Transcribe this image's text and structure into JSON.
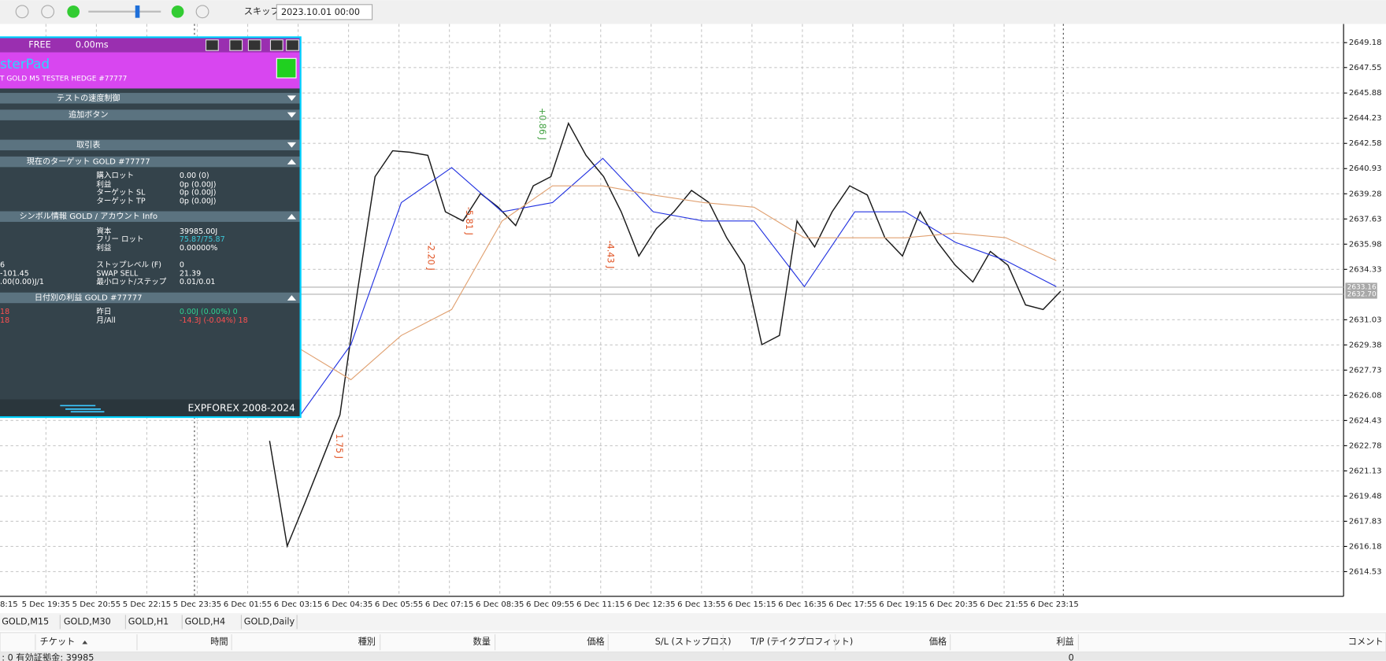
{
  "toolbar": {
    "skip": "スキップ",
    "date": "2023.10.01 00:00"
  },
  "panel": {
    "status": "FREE",
    "ms": "0.00ms",
    "title": "sterPad",
    "subtitle": "T GOLD M5 TESTER HEDGE  #77777",
    "footer": "EXPFOREX 2008-2024",
    "sections": [
      {
        "title": "テストの速度制御",
        "rows": []
      },
      {
        "title": "追加ボタン",
        "rows": []
      },
      {
        "title": "取引表",
        "rows": []
      },
      {
        "title": "現在のターゲット GOLD #77777",
        "rows": [
          {
            "label": "購入ロット",
            "value": "0.00 (0)"
          },
          {
            "label": "利益",
            "value": "0p (0.00J)"
          },
          {
            "label": "ターゲット SL",
            "value": "0p (0.00J)"
          },
          {
            "label": "ターゲット TP",
            "value": "0p (0.00J)"
          }
        ]
      },
      {
        "title": "シンボル情報 GOLD / アカウント Info",
        "rows": [
          {
            "label": "資本",
            "value": "39985.00J"
          },
          {
            "label": "フリー ロット",
            "value": "75.87/75.87",
            "color": "#3cc8d8"
          },
          {
            "label": "利益",
            "value": "0.00000%"
          },
          {
            "left": "6",
            "label": "ストップレベル (F)",
            "value": "0"
          },
          {
            "left": "-101.45",
            "label": "SWAP SELL",
            "value": "21.39"
          },
          {
            "left": ".00(0.00)J/1",
            "label": "最小ロット/ステップ",
            "value": "0.01/0.01"
          }
        ]
      },
      {
        "title": "日付別の利益 GOLD #77777",
        "rows": [
          {
            "left": "18",
            "left_color": "#ff5050",
            "label": "昨日",
            "value": "0.00J (0.00%) 0",
            "color": "#30d090"
          },
          {
            "left": "18",
            "left_color": "#ff5050",
            "label": "月/All",
            "value": "-14.3J (-0.04%) 18",
            "color": "#ff5050"
          }
        ]
      }
    ]
  },
  "chart_data": {
    "type": "line",
    "xticks": [
      "8:15",
      "5 Dec 19:35",
      "5 Dec 20:55",
      "5 Dec 22:15",
      "5 Dec 23:35",
      "6 Dec 01:55",
      "6 Dec 03:15",
      "6 Dec 04:35",
      "6 Dec 05:55",
      "6 Dec 07:15",
      "6 Dec 08:35",
      "6 Dec 09:55",
      "6 Dec 11:15",
      "6 Dec 12:35",
      "6 Dec 13:55",
      "6 Dec 15:15",
      "6 Dec 16:35",
      "6 Dec 17:55",
      "6 Dec 19:15",
      "6 Dec 20:35",
      "6 Dec 21:55",
      "6 Dec 23:15"
    ],
    "ylim": [
      2613.2,
      2650.4
    ],
    "yticks": [
      2649.18,
      2647.55,
      2645.88,
      2644.23,
      2642.58,
      2640.93,
      2639.28,
      2637.63,
      2635.98,
      2634.33,
      2631.03,
      2629.38,
      2627.73,
      2626.08,
      2624.43,
      2622.78,
      2621.13,
      2619.48,
      2617.83,
      2616.18,
      2614.53
    ],
    "grid": true,
    "price_tags": [
      {
        "value": 2633.16,
        "label": "2633.16"
      },
      {
        "value": 2632.7,
        "label": "2632.70"
      }
    ],
    "series": [
      {
        "name": "price",
        "color": "#1a1a1a",
        "values": [
          2623.1,
          2616.2,
          2619.0,
          2621.9,
          2624.8,
          2632.9,
          2640.4,
          2642.1,
          2642.0,
          2641.8,
          2638.1,
          2637.5,
          2639.3,
          2638.4,
          2637.2,
          2639.8,
          2640.4,
          2643.9,
          2641.8,
          2640.4,
          2638.1,
          2635.2,
          2637.0,
          2638.1,
          2639.5,
          2638.7,
          2636.4,
          2634.6,
          2629.4,
          2630.0,
          2637.5,
          2635.8,
          2638.1,
          2639.8,
          2639.2,
          2636.4,
          2635.2,
          2638.1,
          2636.1,
          2634.6,
          2633.5,
          2635.5,
          2634.6,
          2632.0,
          2631.7,
          2632.9
        ]
      },
      {
        "name": "ma-fast",
        "color": "#2030e0",
        "values": [
          2624.8,
          2629.4,
          2638.7,
          2641.0,
          2638.1,
          2638.7,
          2641.6,
          2638.1,
          2637.5,
          2637.5,
          2633.2,
          2638.1,
          2638.1,
          2636.1,
          2634.9,
          2633.2
        ]
      },
      {
        "name": "ma-slow",
        "color": "#e0a070",
        "values": [
          2629.1,
          2627.1,
          2630.0,
          2631.7,
          2637.5,
          2639.8,
          2639.8,
          2639.2,
          2638.7,
          2638.4,
          2636.4,
          2636.4,
          2636.4,
          2636.7,
          2636.4,
          2634.9
        ]
      }
    ],
    "annotations": [
      {
        "text": "+0.86 J",
        "color": "#40a040"
      },
      {
        "text": "-2.20 J",
        "color": "#e05020"
      },
      {
        "text": "-5.81 J",
        "color": "#e05020"
      },
      {
        "text": "-4.43 J",
        "color": "#e05020"
      },
      {
        "text": "1.75 J",
        "color": "#e05020"
      }
    ]
  },
  "tabs": [
    "GOLD,M15",
    "GOLD,M30",
    "GOLD,H1",
    "GOLD,H4",
    "GOLD,Daily"
  ],
  "table": {
    "columns": [
      "チケット",
      "時間",
      "種別",
      "数量",
      "価格",
      "S/L (ストップロス)",
      "T/P (テイクプロフィット)",
      "価格",
      "利益",
      "コメント"
    ],
    "footer_left": ": 0  有効証拠金: 39985",
    "footer_right": "0"
  }
}
